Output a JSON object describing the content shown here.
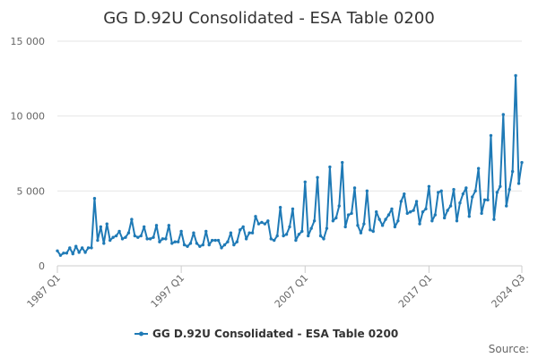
{
  "chart_data": {
    "type": "line",
    "title": "GG D.92U Consolidated - ESA Table 0200",
    "xlabel": "",
    "ylabel": "",
    "ylim": [
      0,
      15000
    ],
    "y_ticks": [
      0,
      5000,
      10000,
      15000
    ],
    "y_tick_labels": [
      "0",
      "5 000",
      "10 000",
      "15 000"
    ],
    "x_tick_labels": [
      "1987 Q1",
      "1997 Q1",
      "2007 Q1",
      "2017 Q1",
      "2024 Q3"
    ],
    "x_tick_index": [
      0,
      40,
      80,
      120,
      150
    ],
    "grid": "horizontal",
    "legend_position": "bottom",
    "series": [
      {
        "name": "GG D.92U Consolidated - ESA Table 0200",
        "color": "#1f7ab6",
        "start": "1987 Q1",
        "frequency": "quarterly",
        "values": [
          1000,
          700,
          850,
          850,
          1200,
          800,
          1300,
          900,
          1200,
          900,
          1200,
          1200,
          4500,
          1700,
          2600,
          1500,
          2800,
          1700,
          1900,
          2000,
          2300,
          1800,
          1900,
          2200,
          3100,
          2000,
          1900,
          2000,
          2600,
          1800,
          1800,
          1900,
          2700,
          1600,
          1800,
          1800,
          2700,
          1500,
          1600,
          1600,
          2300,
          1400,
          1300,
          1500,
          2200,
          1500,
          1300,
          1400,
          2300,
          1400,
          1700,
          1700,
          1700,
          1200,
          1400,
          1600,
          2200,
          1400,
          1600,
          2400,
          2600,
          1800,
          2200,
          2200,
          3300,
          2800,
          2900,
          2800,
          3000,
          1800,
          1700,
          2000,
          3900,
          2000,
          2100,
          2600,
          3800,
          1700,
          2100,
          2300,
          5600,
          2000,
          2500,
          3000,
          5900,
          2000,
          1800,
          2500,
          6600,
          3000,
          3200,
          4000,
          6900,
          2600,
          3400,
          3500,
          5200,
          2700,
          2200,
          2800,
          5000,
          2400,
          2300,
          3600,
          3100,
          2700,
          3100,
          3400,
          3800,
          2600,
          3000,
          4300,
          4800,
          3500,
          3600,
          3700,
          4300,
          2800,
          3600,
          3800,
          5300,
          3000,
          3400,
          4900,
          5000,
          3200,
          3700,
          4000,
          5100,
          3000,
          4200,
          4800,
          5200,
          3300,
          4600,
          5000,
          6500,
          3500,
          4400,
          4400,
          8700,
          3100,
          4900,
          5300,
          10100,
          4000,
          5100,
          6300,
          12700,
          5500,
          6900
        ]
      }
    ],
    "source_label": "Source:"
  }
}
